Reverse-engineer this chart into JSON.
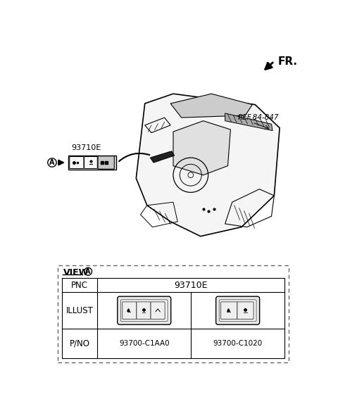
{
  "bg_color": "#ffffff",
  "fr_label": "FR.",
  "ref_label": "REF.84-847",
  "part_label_main": "93710E",
  "part_label_a": "A",
  "view_label": "VIEW",
  "pnc_label": "PNC",
  "illust_label": "ILLUST",
  "pno_label": "P/NO",
  "pno1": "93700-C1AA0",
  "pno2": "93700-C1020",
  "line_color": "#000000",
  "dashed_border": "#888888"
}
